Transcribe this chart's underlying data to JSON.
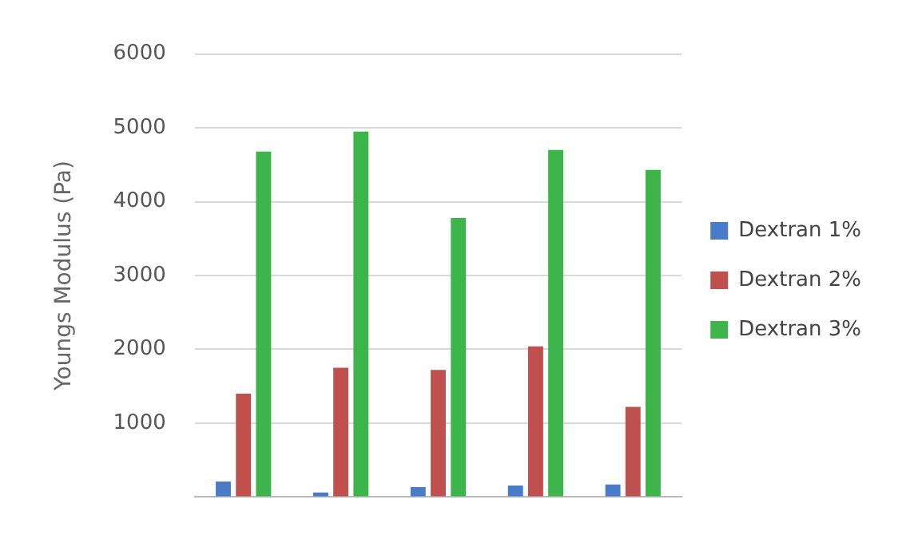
{
  "chart_data": {
    "type": "bar",
    "ylabel": "Youngs Modulus (Pa)",
    "categories": [
      null,
      null,
      null,
      null,
      null
    ],
    "series": [
      {
        "name": "Dextran 1%",
        "color": "#4a7bc8",
        "values": [
          210,
          60,
          135,
          155,
          170
        ]
      },
      {
        "name": "Dextran 2%",
        "color": "#c0504d",
        "values": [
          1400,
          1750,
          1720,
          2040,
          1220
        ]
      },
      {
        "name": "Dextran 3%",
        "color": "#3db54a",
        "values": [
          4680,
          4950,
          3780,
          4700,
          4430
        ]
      }
    ],
    "ylim": [
      0,
      6000
    ],
    "yticks": [
      {
        "value": 0,
        "label": null
      },
      1000,
      2000,
      3000,
      4000,
      5000,
      6000
    ],
    "grid": "y",
    "legend": "right"
  }
}
